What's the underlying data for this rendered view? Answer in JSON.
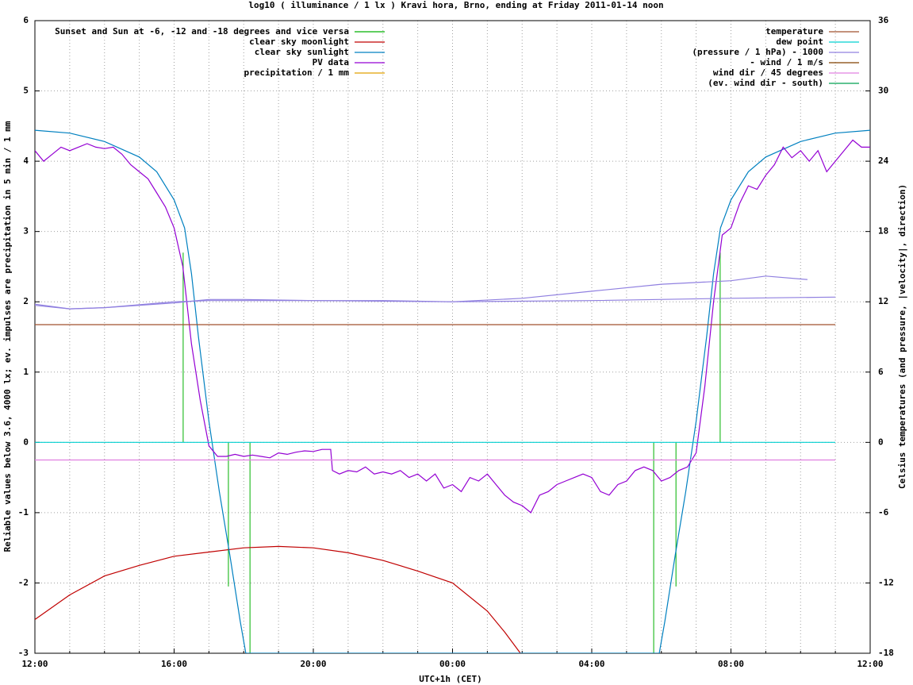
{
  "chart_data": {
    "type": "line",
    "title": "log10 ( illuminance / 1 lx ) Kravi hora, Brno, ending at Friday 2011-01-14 noon",
    "xlabel": "UTC+1h (CET)",
    "ylabel": "Reliable values below 3.6, 4000 lx; ev. impulses are precipitation in 5 min / 1 mm",
    "y2label": "Celsius temperatures (and pressure, |velocity|, direction)",
    "xlim": [
      0,
      24
    ],
    "xticks": [
      {
        "value": 0,
        "label": "12:00"
      },
      {
        "value": 4,
        "label": "16:00"
      },
      {
        "value": 8,
        "label": "20:00"
      },
      {
        "value": 12,
        "label": "00:00"
      },
      {
        "value": 16,
        "label": "04:00"
      },
      {
        "value": 20,
        "label": "08:00"
      },
      {
        "value": 24,
        "label": "12:00"
      }
    ],
    "xminorticks": [
      1,
      2,
      3,
      5,
      6,
      7,
      9,
      10,
      11,
      13,
      14,
      15,
      17,
      18,
      19,
      21,
      22,
      23
    ],
    "ylim": [
      -3,
      6
    ],
    "yticks": [
      -3,
      -2,
      -1,
      0,
      1,
      2,
      3,
      4,
      5,
      6
    ],
    "y2lim": [
      -18,
      36
    ],
    "y2ticks": [
      -18,
      -12,
      -6,
      0,
      6,
      12,
      18,
      24,
      30,
      36
    ],
    "grid": true,
    "legend_y": "top left",
    "legend_y2": "top right",
    "series": [
      {
        "name": "Sunset and Sun at -6, -12 and -18 degrees and vice versa",
        "color": "#00b000",
        "style": "impulses",
        "x": [
          4.26,
          5.56,
          6.18,
          17.78,
          18.42,
          19.69
        ],
        "values": [
          2.7,
          -2.05,
          -3,
          -3,
          -2.05,
          2.7
        ]
      },
      {
        "name": "clear sky moonlight",
        "color": "#c00000",
        "style": "lines",
        "x": [
          0,
          1,
          2,
          3,
          4,
          5,
          6,
          7,
          8,
          9,
          10,
          11,
          12,
          13,
          13.5,
          13.95
        ],
        "values": [
          -2.52,
          -2.17,
          -1.9,
          -1.75,
          -1.62,
          -1.56,
          -1.5,
          -1.48,
          -1.5,
          -1.57,
          -1.68,
          -1.83,
          -2.0,
          -2.4,
          -2.7,
          -3
        ]
      },
      {
        "name": "clear sky sunlight",
        "color": "#0080c0",
        "style": "lines",
        "x": [
          0,
          1,
          2,
          3,
          3.5,
          4,
          4.3,
          4.5,
          4.7,
          5,
          5.3,
          5.6,
          5.9,
          6.06,
          17.94,
          18.1,
          18.4,
          18.7,
          19,
          19.3,
          19.5,
          19.7,
          20,
          20.5,
          21,
          22,
          23,
          24
        ],
        "values": [
          4.44,
          4.4,
          4.28,
          4.06,
          3.85,
          3.45,
          3.05,
          2.4,
          1.5,
          0.3,
          -0.7,
          -1.6,
          -2.55,
          -3,
          -3,
          -2.55,
          -1.6,
          -0.7,
          0.3,
          1.5,
          2.4,
          3.05,
          3.45,
          3.85,
          4.06,
          4.28,
          4.4,
          4.44
        ]
      },
      {
        "name": "PV data",
        "color": "#9400d3",
        "style": "lines",
        "x": [
          0,
          0.25,
          0.5,
          0.75,
          1,
          1.25,
          1.5,
          1.75,
          2,
          2.25,
          2.5,
          2.75,
          3,
          3.25,
          3.5,
          3.75,
          4,
          4.25,
          4.5,
          4.75,
          5,
          5.25,
          5.5,
          5.75,
          6,
          6.25,
          6.5,
          6.75,
          7,
          7.25,
          7.5,
          7.75,
          8,
          8.25,
          8.5,
          8.55,
          8.75,
          9,
          9.25,
          9.5,
          9.75,
          10,
          10.25,
          10.5,
          10.75,
          11,
          11.25,
          11.5,
          11.75,
          12,
          12.25,
          12.5,
          12.75,
          13,
          13.25,
          13.5,
          13.75,
          14,
          14.25,
          14.5,
          14.75,
          15,
          15.25,
          15.5,
          15.75,
          16,
          16.25,
          16.5,
          16.75,
          17,
          17.25,
          17.5,
          17.75,
          18,
          18.25,
          18.5,
          18.75,
          19,
          19.25,
          19.5,
          19.75,
          20,
          20.25,
          20.5,
          20.75,
          21,
          21.25,
          21.5,
          21.75,
          22,
          22.25,
          22.5,
          22.75,
          23,
          23.25,
          23.5,
          23.75,
          24
        ],
        "values": [
          4.15,
          4.0,
          4.1,
          4.2,
          4.15,
          4.2,
          4.25,
          4.2,
          4.18,
          4.2,
          4.1,
          3.95,
          3.85,
          3.75,
          3.55,
          3.35,
          3.05,
          2.5,
          1.4,
          0.6,
          -0.05,
          -0.2,
          -0.2,
          -0.17,
          -0.2,
          -0.18,
          -0.2,
          -0.22,
          -0.15,
          -0.17,
          -0.14,
          -0.12,
          -0.13,
          -0.1,
          -0.1,
          -0.4,
          -0.45,
          -0.4,
          -0.42,
          -0.35,
          -0.45,
          -0.42,
          -0.45,
          -0.4,
          -0.5,
          -0.45,
          -0.55,
          -0.45,
          -0.65,
          -0.6,
          -0.7,
          -0.5,
          -0.55,
          -0.45,
          -0.6,
          -0.75,
          -0.85,
          -0.9,
          -1.0,
          -0.75,
          -0.7,
          -0.6,
          -0.55,
          -0.5,
          -0.45,
          -0.5,
          -0.7,
          -0.75,
          -0.6,
          -0.55,
          -0.4,
          -0.35,
          -0.4,
          -0.55,
          -0.5,
          -0.4,
          -0.35,
          -0.15,
          0.8,
          2.0,
          2.95,
          3.05,
          3.4,
          3.65,
          3.6,
          3.8,
          3.95,
          4.2,
          4.05,
          4.15,
          4.0,
          4.15,
          3.85,
          4.0,
          4.15,
          4.3,
          4.2,
          4.2
        ]
      },
      {
        "name": "precipitation / 1 mm",
        "color": "#e0a000",
        "style": "impulses",
        "x": [],
        "values": []
      },
      {
        "name": "temperature",
        "color": "#a0522d",
        "style": "lines",
        "axis": "y2",
        "x": [
          0,
          23
        ],
        "values": [
          10.05,
          10.05
        ]
      },
      {
        "name": "dew point",
        "color": "#00d0d0",
        "style": "lines",
        "axis": "y2",
        "x": [
          0,
          23
        ],
        "values": [
          0,
          0
        ]
      },
      {
        "name": "(pressure / 1 hPa) - 1000",
        "color": "#9080e0",
        "style": "lines",
        "axis": "y2",
        "x": [
          0,
          1,
          2,
          4,
          5,
          6,
          8,
          10,
          12,
          14,
          16,
          18,
          20,
          21,
          22.2
        ],
        "values": [
          11.7,
          11.4,
          11.5,
          11.9,
          12.2,
          12.2,
          12.1,
          12.1,
          12.0,
          12.3,
          12.9,
          13.5,
          13.8,
          14.2,
          13.9
        ]
      },
      {
        "color": "#9080e0",
        "style": "lines",
        "axis": "y2",
        "x": [
          0,
          1,
          2,
          4,
          5,
          8,
          12,
          16,
          20,
          23
        ],
        "values": [
          11.8,
          11.4,
          11.5,
          12.0,
          12.1,
          12.1,
          12.0,
          12.1,
          12.3,
          12.4
        ]
      },
      {
        "name": "- wind / 1 m/s",
        "color": "#804000",
        "style": "lines",
        "axis": "y2",
        "x": [],
        "values": []
      },
      {
        "name": "wind dir / 45 degrees",
        "color": "#e080e0",
        "style": "lines",
        "axis": "y2",
        "x": [
          0,
          23
        ],
        "values": [
          -1.5,
          -1.5
        ]
      },
      {
        "name": "(ev. wind dir - south)",
        "color": "#00a050",
        "style": "impulses",
        "axis": "y2",
        "x": [],
        "values": []
      }
    ]
  }
}
